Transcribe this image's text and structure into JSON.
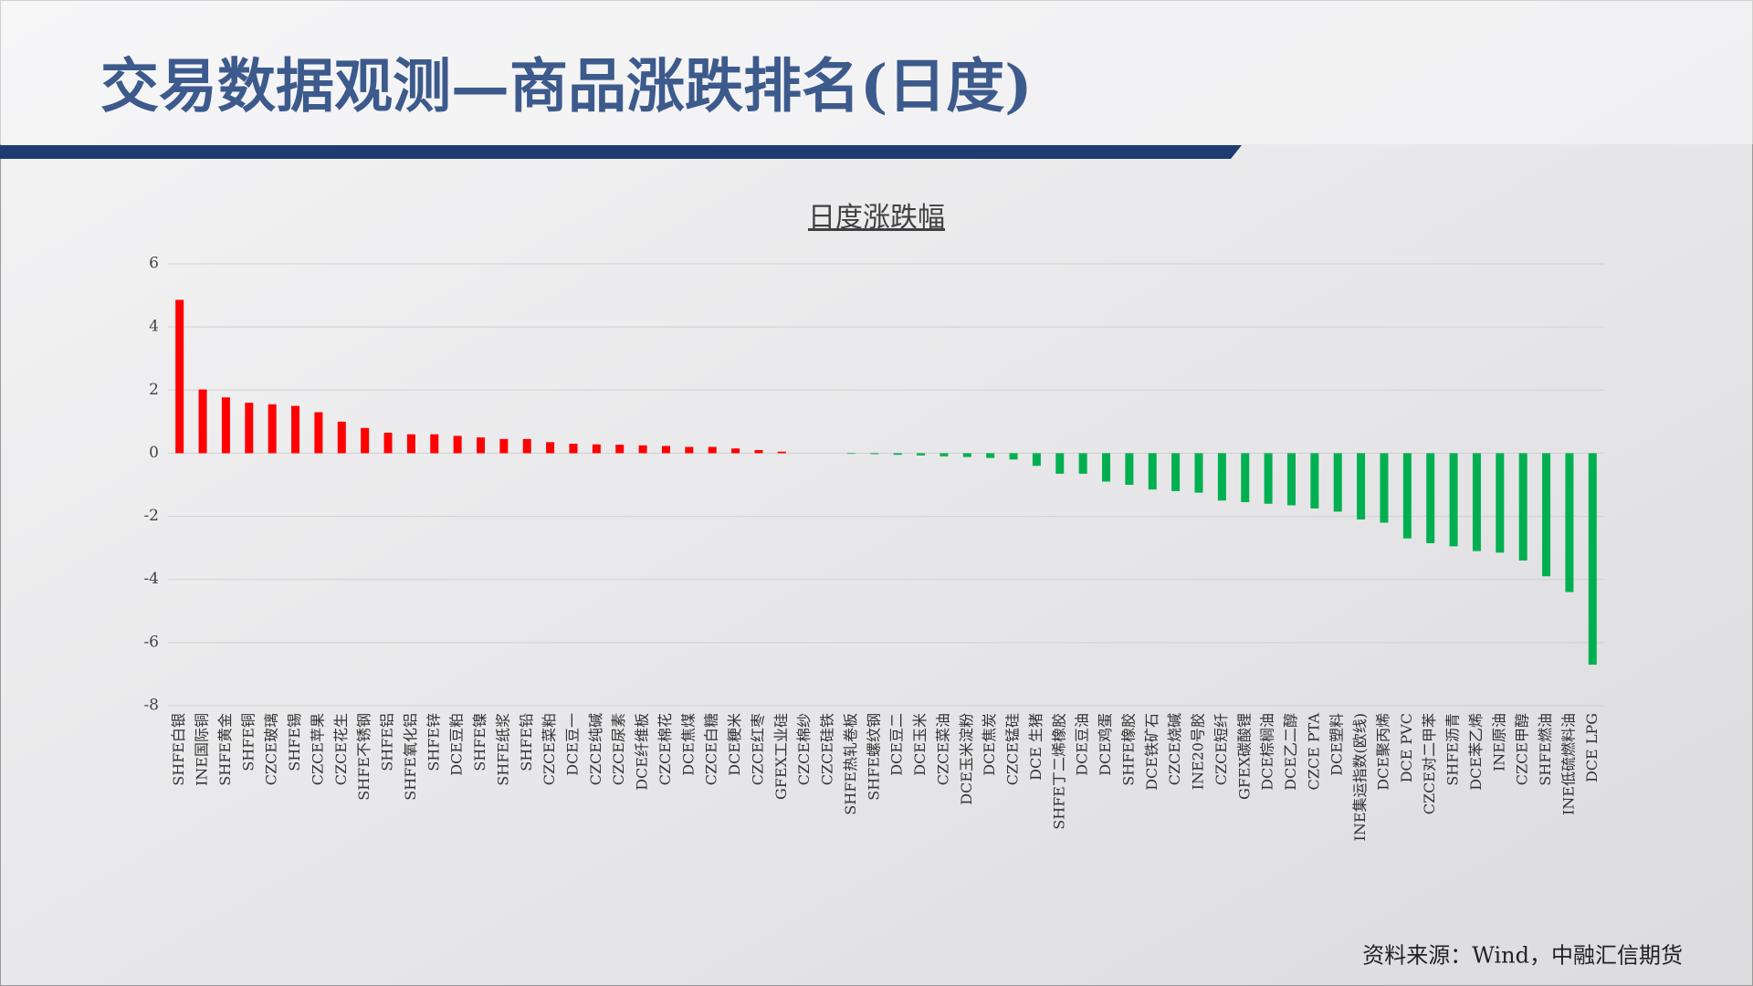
{
  "title": "交易数据观测—商品涨跌排名(日度)",
  "source": "资料来源：Wind，中融汇信期货",
  "chart_data": {
    "type": "bar",
    "title": "日度涨跌幅",
    "categories": [
      "SHFE白银",
      "INE国际铜",
      "SHFE黄金",
      "SHFE铜",
      "CZCE玻璃",
      "SHFE锡",
      "CZCE苹果",
      "CZCE花生",
      "SHFE不锈钢",
      "SHFE铝",
      "SHFE氧化铝",
      "SHFE锌",
      "DCE豆粕",
      "SHFE镍",
      "SHFE纸浆",
      "SHFE铅",
      "CZCE菜粕",
      "DCE豆一",
      "CZCE纯碱",
      "CZCE尿素",
      "DCE纤维板",
      "CZCE棉花",
      "DCE焦煤",
      "CZCE白糖",
      "DCE粳米",
      "CZCE红枣",
      "GFEX工业硅",
      "CZCE棉纱",
      "CZCE硅铁",
      "SHFE热轧卷板",
      "SHFE螺纹钢",
      "DCE豆二",
      "DCE玉米",
      "CZCE菜油",
      "DCE玉米淀粉",
      "DCE焦炭",
      "CZCE锰硅",
      "DCE 生猪",
      "SHFE丁二烯橡胶",
      "DCE豆油",
      "DCE鸡蛋",
      "SHFE橡胶",
      "DCE铁矿石",
      "CZCE烧碱",
      "INE20号胶",
      "CZCE短纤",
      "GFEX碳酸锂",
      "DCE棕榈油",
      "DCE乙二醇",
      "CZCE PTA",
      "DCE塑料",
      "INE集运指数(欧线)",
      "DCE聚丙烯",
      "DCE PVC",
      "CZCE对二甲苯",
      "SHFE沥青",
      "DCE苯乙烯",
      "INE原油",
      "CZCE甲醇",
      "SHFE燃油",
      "INE低硫燃料油",
      "DCE LPG"
    ],
    "values": [
      4.86,
      2.02,
      1.77,
      1.6,
      1.55,
      1.5,
      1.3,
      1.0,
      0.8,
      0.65,
      0.6,
      0.6,
      0.55,
      0.5,
      0.45,
      0.45,
      0.35,
      0.3,
      0.28,
      0.27,
      0.25,
      0.23,
      0.2,
      0.2,
      0.15,
      0.1,
      0.05,
      0.0,
      0.0,
      -0.02,
      -0.03,
      -0.05,
      -0.07,
      -0.1,
      -0.12,
      -0.15,
      -0.2,
      -0.4,
      -0.65,
      -0.65,
      -0.9,
      -1.0,
      -1.15,
      -1.2,
      -1.25,
      -1.5,
      -1.55,
      -1.6,
      -1.65,
      -1.75,
      -1.85,
      -2.1,
      -2.2,
      -2.7,
      -2.85,
      -2.95,
      -3.1,
      -3.15,
      -3.4,
      -3.9,
      -4.4,
      -6.7
    ],
    "up_color": "#ff0000",
    "down_color": "#00b050",
    "ylim": [
      -8,
      6
    ],
    "yticks": [
      -8,
      -6,
      -4,
      -2,
      0,
      2,
      4,
      6
    ],
    "grid": true
  }
}
